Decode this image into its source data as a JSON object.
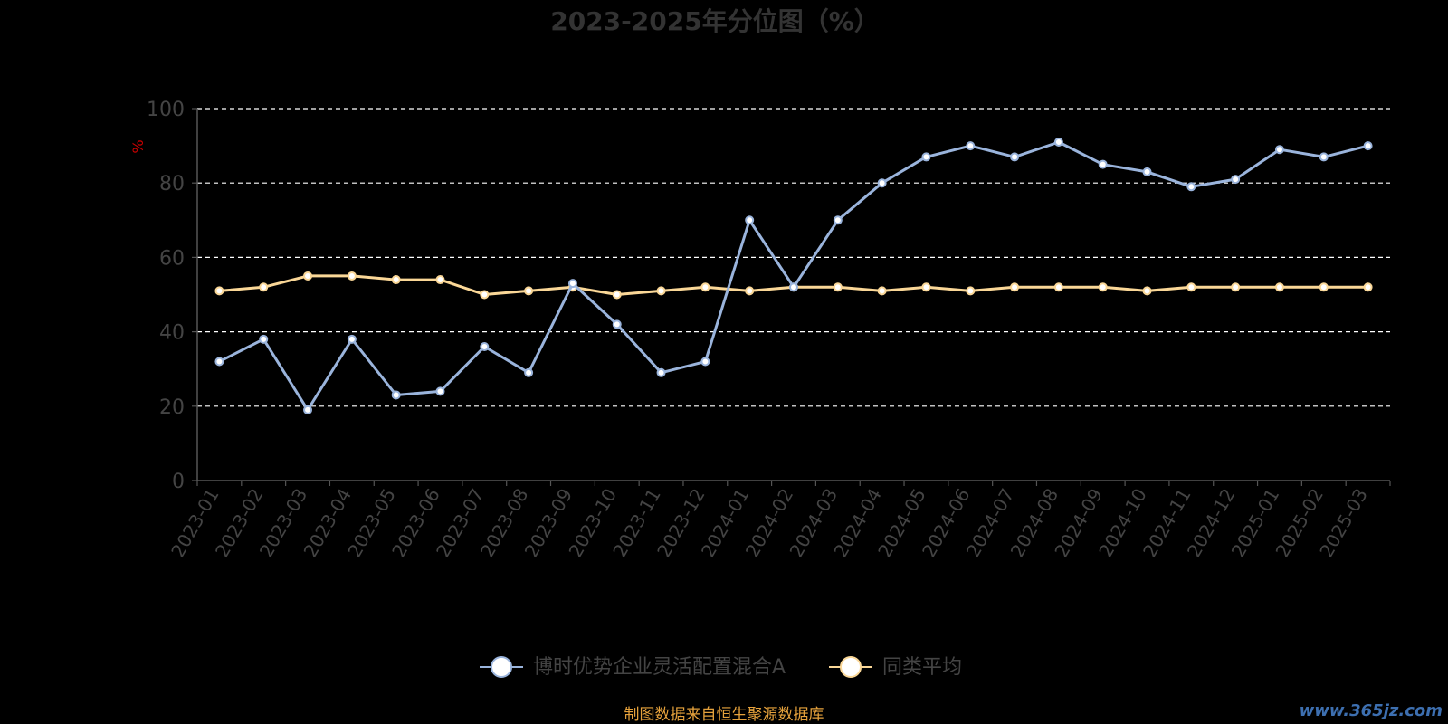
{
  "chart_data": {
    "type": "line",
    "title": "2023-2025年分位图（%）",
    "ylabel": "%",
    "ylim": [
      0,
      100
    ],
    "yticks": [
      0,
      20,
      40,
      60,
      80,
      100
    ],
    "grid": true,
    "legend_position": "bottom-center",
    "categories": [
      "2023-01",
      "2023-02",
      "2023-03",
      "2023-04",
      "2023-05",
      "2023-06",
      "2023-07",
      "2023-08",
      "2023-09",
      "2023-10",
      "2023-11",
      "2023-12",
      "2024-01",
      "2024-02",
      "2024-03",
      "2024-04",
      "2024-05",
      "2024-06",
      "2024-07",
      "2024-08",
      "2024-09",
      "2024-10",
      "2024-11",
      "2024-12",
      "2025-01",
      "2025-02",
      "2025-03"
    ],
    "series": [
      {
        "name": "博时优势企业灵活配置混合A",
        "color": "#9ab4dc",
        "values": [
          32,
          38,
          19,
          38,
          23,
          24,
          36,
          29,
          53,
          42,
          29,
          32,
          70,
          52,
          70,
          80,
          87,
          90,
          87,
          91,
          85,
          83,
          79,
          81,
          89,
          87,
          90
        ]
      },
      {
        "name": "同类平均",
        "color": "#fad797",
        "values": [
          51,
          52,
          55,
          55,
          54,
          54,
          50,
          51,
          52,
          50,
          51,
          52,
          51,
          52,
          52,
          51,
          52,
          51,
          52,
          52,
          52,
          51,
          52,
          52,
          52,
          52,
          52
        ]
      }
    ],
    "source_note": "制图数据来自恒生聚源数据库"
  },
  "watermark": "www.365jz.com",
  "colors": {
    "axis": "#555555",
    "grid": "#ffffff",
    "tick_text": "#444444",
    "title": "#333333",
    "ylabel": "#cc0000",
    "source_note": "#e6a23c"
  }
}
